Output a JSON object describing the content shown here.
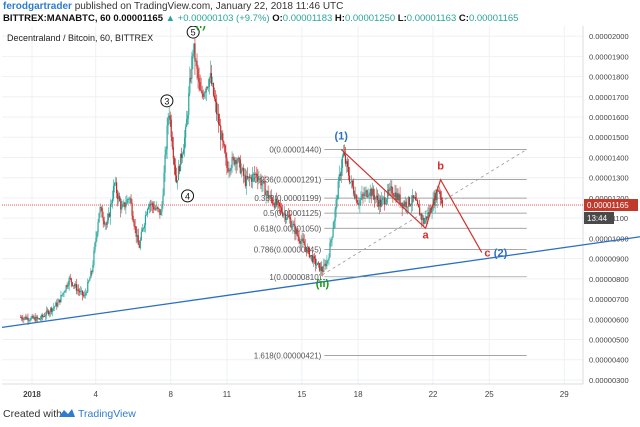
{
  "header": {
    "author": "ferodgartrader",
    "published_text": "published on TradingView.com, January 22, 2018 11:46 UTC",
    "symbol": "BITTREX:MANABTC, 60",
    "last": "0.00001165",
    "change": "▲ +0.00000103 (+9.7%)",
    "o_label": "O:",
    "o_value": "0.00001183",
    "h_label": "H:",
    "h_value": "0.00001250",
    "l_label": "L:",
    "l_value": "0.00001163",
    "c_label": "C:",
    "c_value": "0.00001165"
  },
  "chart_data": {
    "type": "candlestick",
    "title": "Decentraland / Bitcoin, 60, BITTREX",
    "x_tick_labels": [
      "2018",
      "4",
      "8",
      "11",
      "15",
      "18",
      "22",
      "25",
      "29"
    ],
    "y_tick_labels": [
      "0.00002000",
      "0.00001900",
      "0.00001800",
      "0.00001700",
      "0.00001600",
      "0.00001500",
      "0.00001400",
      "0.00001300",
      "0.00001200",
      "0.00001100",
      "0.00001000",
      "0.00000900",
      "0.00000800",
      "0.00000700",
      "0.00000600",
      "0.00000500",
      "0.00000400",
      "0.00000300"
    ],
    "ylim": [
      2.8e-06,
      2.05e-05
    ],
    "last_price_label": "0.00001165",
    "countdown_label": "13:44",
    "price_path": [
      [
        0.0,
        6.1e-06
      ],
      [
        1.0,
        6e-06
      ],
      [
        2.0,
        6.8e-06
      ],
      [
        2.6,
        8e-06
      ],
      [
        3.0,
        7.5e-06
      ],
      [
        3.4,
        7.1e-06
      ],
      [
        3.8,
        8.4e-06
      ],
      [
        4.2,
        1.15e-05
      ],
      [
        4.6,
        1.06e-05
      ],
      [
        5.0,
        1.27e-05
      ],
      [
        5.4,
        1.14e-05
      ],
      [
        5.8,
        1.21e-05
      ],
      [
        6.3,
        9.5e-06
      ],
      [
        6.8,
        1.18e-05
      ],
      [
        7.5,
        1.12e-05
      ],
      [
        7.9,
        1.65e-05
      ],
      [
        8.3,
        1.28e-05
      ],
      [
        8.8,
        1.52e-05
      ],
      [
        9.2,
        1.95e-05
      ],
      [
        9.6,
        1.7e-05
      ],
      [
        10.1,
        1.8e-05
      ],
      [
        10.7,
        1.5e-05
      ],
      [
        11.0,
        1.35e-05
      ],
      [
        11.5,
        1.4e-05
      ],
      [
        12.0,
        1.28e-05
      ],
      [
        12.6,
        1.32e-05
      ],
      [
        13.2,
        1.21e-05
      ],
      [
        13.8,
        1.15e-05
      ],
      [
        14.3,
        1.1e-05
      ],
      [
        14.8,
        1.01e-05
      ],
      [
        15.3,
        9.4e-06
      ],
      [
        15.7,
        8.8e-06
      ],
      [
        16.1,
        8.4e-06
      ],
      [
        16.4,
        9e-06
      ],
      [
        16.7,
        1.08e-05
      ],
      [
        17.0,
        1.3e-05
      ],
      [
        17.2,
        1.42e-05
      ],
      [
        17.6,
        1.28e-05
      ],
      [
        18.0,
        1.18e-05
      ],
      [
        18.6,
        1.24e-05
      ],
      [
        19.2,
        1.17e-05
      ],
      [
        19.8,
        1.24e-05
      ],
      [
        20.4,
        1.17e-05
      ],
      [
        21.0,
        1.19e-05
      ],
      [
        21.5,
        1.08e-05
      ],
      [
        21.9,
        1.15e-05
      ],
      [
        22.3,
        1.25e-05
      ],
      [
        22.5,
        1.17e-05
      ]
    ],
    "fib_levels": [
      {
        "label": "0(0.00001440)",
        "value": 1.44e-05
      },
      {
        "label": "0.236(0.00001291)",
        "value": 1.291e-05
      },
      {
        "label": "0.382(0.00001199)",
        "value": 1.199e-05
      },
      {
        "label": "0.5(0.00001125)",
        "value": 1.125e-05
      },
      {
        "label": "0.618(0.00001050)",
        "value": 1.05e-05
      },
      {
        "label": "0.786(0.00000945)",
        "value": 9.45e-06
      },
      {
        "label": "1(0.00000810)",
        "value": 8.1e-06
      },
      {
        "label": "1.618(0.00000421)",
        "value": 4.21e-06
      }
    ],
    "wave_labels": [
      {
        "text": "(i)",
        "x": 9.6,
        "y": 2.04e-05,
        "color": "#1a9a1a"
      },
      {
        "text": "(ii)",
        "x": 16.1,
        "y": 7.6e-06,
        "color": "#1a9a1a"
      },
      {
        "text": "(1)",
        "x": 17.1,
        "y": 1.49e-05,
        "color": "#2e6fbf"
      },
      {
        "text": "(2)",
        "x": 25.6,
        "y": 9.1e-06,
        "color": "#2e6fbf"
      },
      {
        "text": "a",
        "x": 21.6,
        "y": 1e-05,
        "color": "#d0312d"
      },
      {
        "text": "b",
        "x": 22.4,
        "y": 1.34e-05,
        "color": "#d0312d"
      },
      {
        "text": "c",
        "x": 24.9,
        "y": 9.1e-06,
        "color": "#d0312d"
      }
    ],
    "circled_labels": [
      {
        "text": "3",
        "x": 7.8,
        "y": 1.68e-05
      },
      {
        "text": "4",
        "x": 8.9,
        "y": 1.21e-05
      },
      {
        "text": "5",
        "x": 9.2,
        "y": 2.02e-05
      }
    ],
    "trendline": [
      [
        -1.0,
        5.6e-06
      ],
      [
        30.0,
        1.01e-05
      ]
    ],
    "projection_dashed": [
      [
        16.1,
        8.2e-06
      ],
      [
        27.0,
        1.44e-05
      ]
    ],
    "projection_red": [
      [
        17.1,
        1.44e-05
      ],
      [
        21.6,
        1.05e-05
      ],
      [
        22.4,
        1.29e-05
      ],
      [
        24.6,
        9.3e-06
      ]
    ],
    "colors": {
      "bull": "#26a69a",
      "bear": "#c62828",
      "trend": "#2a6fc0",
      "projection": "#d0312d",
      "fib": "#888888",
      "price_line": "#d0312d",
      "price_tag": "#c0392b"
    }
  },
  "footer": {
    "created_with": "Created with",
    "brand": "TradingView"
  }
}
